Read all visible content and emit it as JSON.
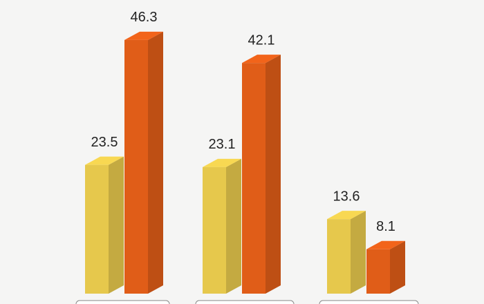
{
  "chart_data": {
    "type": "bar3d",
    "categories": [
      null,
      null,
      null
    ],
    "series": [
      {
        "color": "#e6c84c",
        "values": [
          23.5,
          23.1,
          13.6
        ]
      },
      {
        "color": "#e05d18",
        "values": [
          46.3,
          42.1,
          8.1
        ]
      }
    ]
  }
}
